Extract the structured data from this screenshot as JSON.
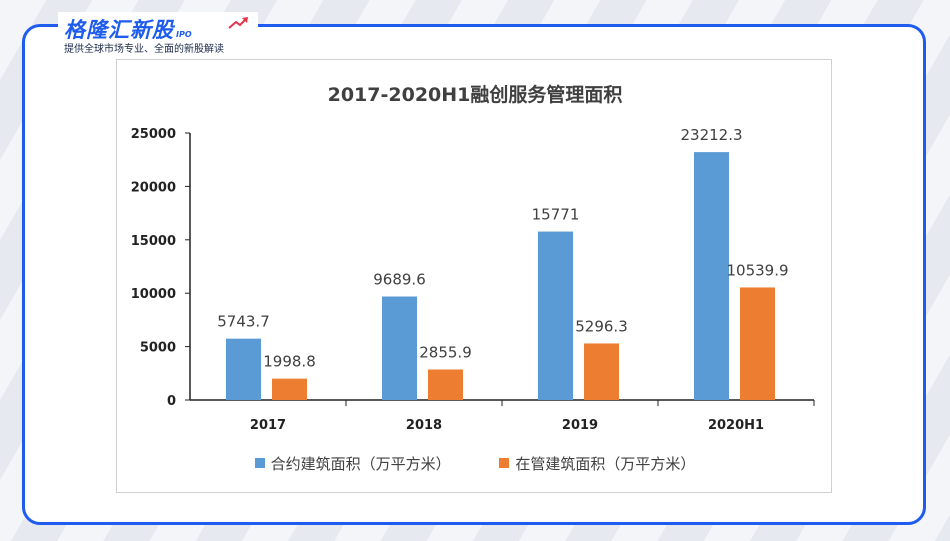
{
  "brand": {
    "name": "格隆汇新股",
    "sub": "IPO",
    "tagline": "提供全球市场专业、全面的新股解读"
  },
  "colors": {
    "frame": "#1e5cf0",
    "series1": "#5b9bd5",
    "series2": "#ed7d31"
  },
  "chart_data": {
    "type": "bar",
    "title": "2017-2020H1融创服务管理面积",
    "categories": [
      "2017",
      "2018",
      "2019",
      "2020H1"
    ],
    "series": [
      {
        "name": "合约建筑面积（万平方米）",
        "values": [
          5743.7,
          9689.6,
          15771,
          23212.3
        ],
        "labels": [
          "5743.7",
          "9689.6",
          "15771",
          "23212.3"
        ]
      },
      {
        "name": "在管建筑面积（万平方米）",
        "values": [
          1998.8,
          2855.9,
          5296.3,
          10539.9
        ],
        "labels": [
          "1998.8",
          "2855.9",
          "5296.3",
          "10539.9"
        ]
      }
    ],
    "yticks": [
      "0",
      "5000",
      "10000",
      "15000",
      "20000",
      "25000"
    ],
    "ylim": [
      0,
      25000
    ],
    "grid": false,
    "legend": "bottom"
  }
}
